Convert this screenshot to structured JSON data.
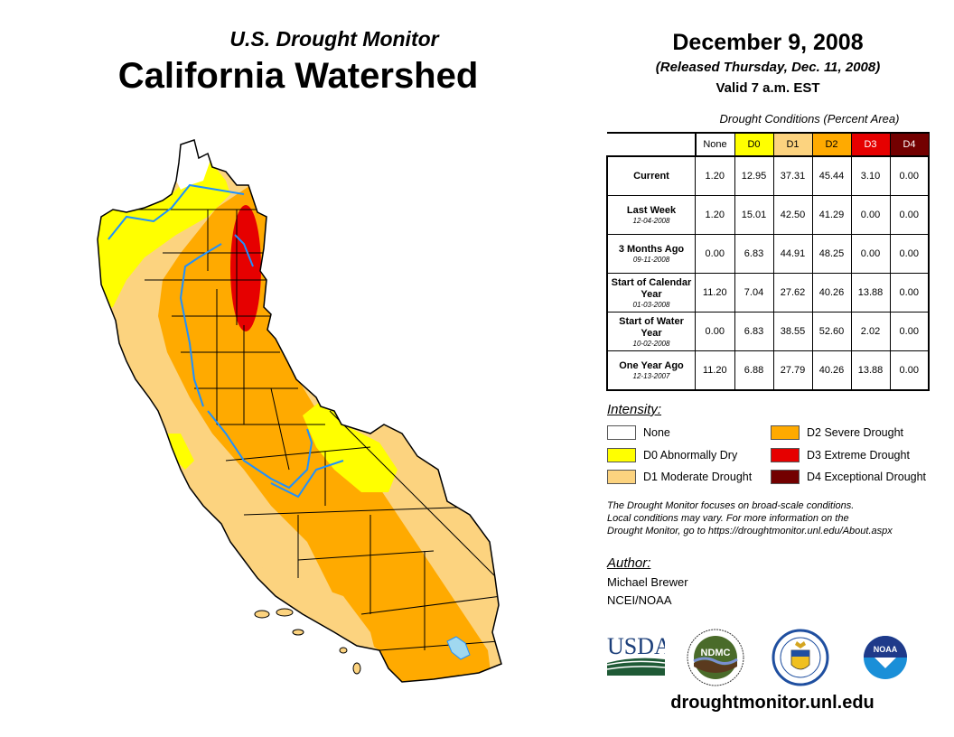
{
  "header": {
    "subtitle": "U.S. Drought Monitor",
    "title": "California Watershed",
    "date": "December 9, 2008",
    "released": "(Released Thursday, Dec. 11, 2008)",
    "valid": "Valid 7 a.m. EST"
  },
  "table": {
    "caption": "Drought Conditions (Percent Area)",
    "columns": [
      {
        "label": "None",
        "color": "#ffffff",
        "text": "#000000"
      },
      {
        "label": "D0",
        "color": "#ffff00",
        "text": "#000000"
      },
      {
        "label": "D1",
        "color": "#fcd37f",
        "text": "#000000"
      },
      {
        "label": "D2",
        "color": "#ffaa00",
        "text": "#000000"
      },
      {
        "label": "D3",
        "color": "#e60000",
        "text": "#ffffff"
      },
      {
        "label": "D4",
        "color": "#730000",
        "text": "#ffffff"
      }
    ],
    "rows": [
      {
        "label": "Current",
        "date": "",
        "values": [
          "1.20",
          "12.95",
          "37.31",
          "45.44",
          "3.10",
          "0.00"
        ]
      },
      {
        "label": "Last Week",
        "date": "12-04-2008",
        "values": [
          "1.20",
          "15.01",
          "42.50",
          "41.29",
          "0.00",
          "0.00"
        ]
      },
      {
        "label": "3 Months Ago",
        "date": "09-11-2008",
        "values": [
          "0.00",
          "6.83",
          "44.91",
          "48.25",
          "0.00",
          "0.00"
        ]
      },
      {
        "label": "Start of Calendar Year",
        "date": "01-03-2008",
        "values": [
          "11.20",
          "7.04",
          "27.62",
          "40.26",
          "13.88",
          "0.00"
        ]
      },
      {
        "label": "Start of Water Year",
        "date": "10-02-2008",
        "values": [
          "0.00",
          "6.83",
          "38.55",
          "52.60",
          "2.02",
          "0.00"
        ]
      },
      {
        "label": "One Year Ago",
        "date": "12-13-2007",
        "values": [
          "11.20",
          "6.88",
          "27.79",
          "40.26",
          "13.88",
          "0.00"
        ]
      }
    ]
  },
  "legend": {
    "heading": "Intensity:",
    "items": [
      {
        "label": "None",
        "color": "#ffffff"
      },
      {
        "label": "D0 Abnormally Dry",
        "color": "#ffff00"
      },
      {
        "label": "D1 Moderate Drought",
        "color": "#fcd37f"
      },
      {
        "label": "D2 Severe Drought",
        "color": "#ffaa00"
      },
      {
        "label": "D3 Extreme Drought",
        "color": "#e60000"
      },
      {
        "label": "D4 Exceptional Drought",
        "color": "#730000"
      }
    ]
  },
  "note": {
    "lines": [
      "The Drought Monitor focuses on broad-scale conditions.",
      "Local conditions may vary. For more information on the",
      "Drought Monitor, go to https://droughtmonitor.unl.edu/About.aspx"
    ]
  },
  "author": {
    "heading": "Author:",
    "name": "Michael Brewer",
    "org": "NCEI/NOAA"
  },
  "logos": {
    "usda": "USDA",
    "ndmc": "NDMC",
    "noaa": "NOAA"
  },
  "footer": {
    "url": "droughtmonitor.unl.edu"
  },
  "map": {
    "region": "California Watershed",
    "colors": {
      "none": "#ffffff",
      "d0": "#ffff00",
      "d1": "#fcd37f",
      "d2": "#ffaa00",
      "d3": "#e60000",
      "river": "#1e90ff",
      "lake": "#a0d8f0"
    }
  }
}
